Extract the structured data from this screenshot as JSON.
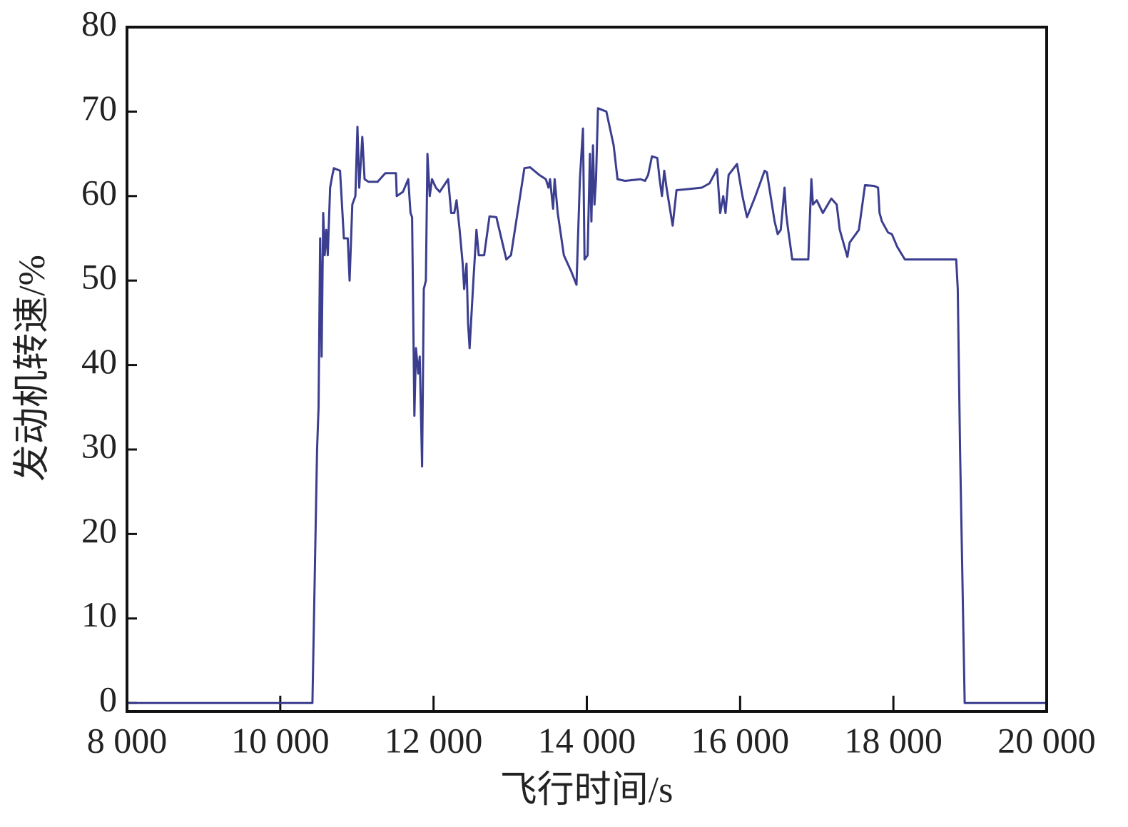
{
  "chart_data": {
    "type": "line",
    "xlabel": "飞行时间/s",
    "ylabel": "发动机转速/%",
    "xlim": [
      8000,
      20000
    ],
    "xticks": [
      {
        "value": 8000,
        "label": "8 000"
      },
      {
        "value": 10000,
        "label": "10 000"
      },
      {
        "value": 12000,
        "label": "12 000"
      },
      {
        "value": 14000,
        "label": "14 000"
      },
      {
        "value": 16000,
        "label": "16 000"
      },
      {
        "value": 18000,
        "label": "18 000"
      },
      {
        "value": 20000,
        "label": "20 000"
      }
    ],
    "ylim": [
      -1,
      80
    ],
    "yticks": [
      0,
      10,
      20,
      30,
      40,
      50,
      60,
      70,
      80
    ],
    "color": "#3b3e8f",
    "x": [
      8000,
      10420,
      10480,
      10500,
      10520,
      10540,
      10560,
      10580,
      10600,
      10620,
      10650,
      10680,
      10700,
      10780,
      10830,
      10880,
      10905,
      10940,
      10980,
      11007,
      11030,
      11070,
      11100,
      11150,
      11270,
      11370,
      11510,
      11520,
      11600,
      11670,
      11700,
      11720,
      11750,
      11770,
      11800,
      11820,
      11850,
      11873,
      11900,
      11920,
      11950,
      11980,
      12030,
      12080,
      12190,
      12230,
      12270,
      12300,
      12340,
      12380,
      12400,
      12430,
      12450,
      12470,
      12520,
      12560,
      12590,
      12660,
      12730,
      12820,
      12950,
      13010,
      13185,
      13260,
      13380,
      13465,
      13500,
      13520,
      13560,
      13580,
      13620,
      13700,
      13800,
      13865,
      13910,
      13950,
      13970,
      14010,
      14040,
      14060,
      14080,
      14100,
      14120,
      14145,
      14255,
      14350,
      14400,
      14500,
      14600,
      14700,
      14760,
      14800,
      14850,
      14920,
      14950,
      14980,
      15010,
      15040,
      15120,
      15170,
      15300,
      15500,
      15600,
      15700,
      15740,
      15780,
      15810,
      15850,
      15960,
      16030,
      16090,
      16200,
      16320,
      16350,
      16450,
      16490,
      16530,
      16580,
      16600,
      16620,
      16680,
      16890,
      16930,
      16950,
      17000,
      17080,
      17190,
      17260,
      17300,
      17400,
      17430,
      17550,
      17630,
      17750,
      17800,
      17820,
      17850,
      17930,
      17980,
      18050,
      18150,
      18820,
      18840,
      18870,
      18930,
      20000
    ],
    "values": [
      0,
      0,
      30,
      35,
      55,
      41,
      58,
      53,
      56,
      53,
      61,
      62.5,
      63.3,
      63,
      55,
      55,
      50,
      59,
      60,
      68.2,
      61,
      67,
      62,
      61.7,
      61.7,
      62.7,
      62.7,
      60,
      60.5,
      62,
      58,
      57.5,
      34,
      42,
      39,
      41,
      28,
      49,
      50,
      65,
      60,
      62,
      61,
      60.5,
      62,
      58,
      58,
      59.5,
      56,
      52,
      49,
      52,
      45,
      42,
      50,
      56,
      53,
      53,
      57.6,
      57.5,
      52.5,
      53,
      63.3,
      63.4,
      62.5,
      62,
      61,
      62,
      58.5,
      62,
      58,
      53,
      51,
      49.5,
      62,
      68,
      52.5,
      53,
      65,
      57,
      66,
      59,
      62,
      70.4,
      70,
      66,
      62,
      61.8,
      61.9,
      62,
      61.8,
      62.5,
      64.7,
      64.5,
      62,
      60,
      63,
      61,
      56.5,
      60.7,
      60.8,
      61,
      61.5,
      63.2,
      58,
      60,
      58,
      62.5,
      63.8,
      60,
      57.5,
      60,
      63,
      62.8,
      57,
      55.5,
      56,
      61,
      58,
      56.5,
      52.5,
      52.5,
      62,
      59,
      59.5,
      58,
      59.7,
      59,
      56,
      52.8,
      54.5,
      56,
      61.3,
      61.2,
      61,
      58,
      57,
      55.7,
      55.5,
      54,
      52.5,
      52.5,
      49,
      30,
      0,
      0
    ]
  }
}
